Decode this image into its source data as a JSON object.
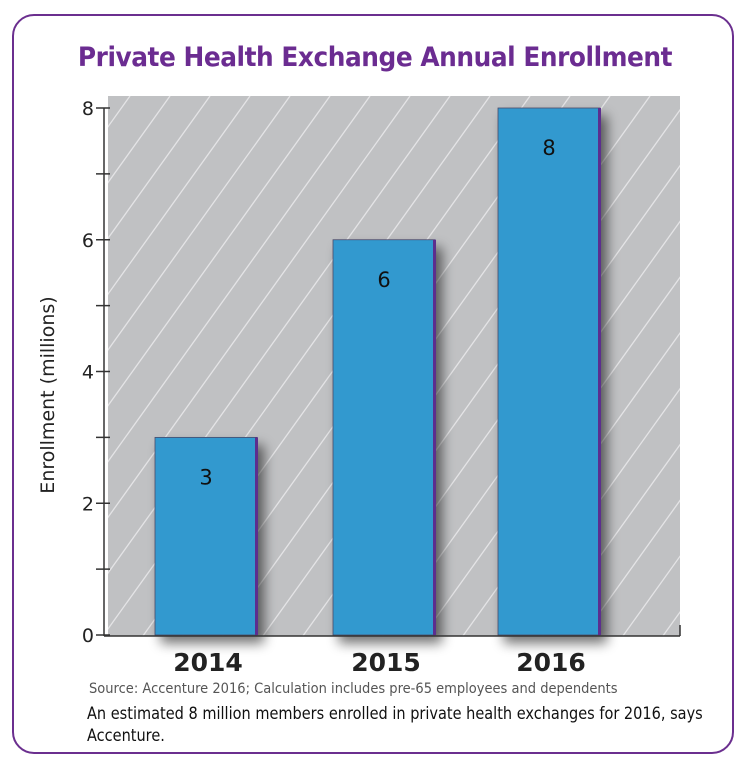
{
  "chart_data": {
    "type": "bar",
    "title": "Private Health Exchange Annual Enrollment",
    "categories": [
      "2014",
      "2015",
      "2016"
    ],
    "values": [
      3,
      6,
      8
    ],
    "data_labels": [
      "3",
      "6",
      "8"
    ],
    "xlabel": "",
    "ylabel": "Enrollment (millions)",
    "ylim": [
      0,
      8
    ],
    "yticks": [
      0,
      2,
      4,
      6,
      8
    ],
    "minor_tick_step": 1,
    "grid": false,
    "colors": {
      "bar": "#3199cf",
      "bar_edge": "#5b2d8e",
      "plot_bg": "#c0c1c3",
      "title": "#6b2c91"
    }
  },
  "source": "Source: Accenture 2016; Calculation includes pre-65 employees and dependents",
  "caption": "An estimated 8 million members enrolled in private health exchanges for 2016, says Accenture."
}
